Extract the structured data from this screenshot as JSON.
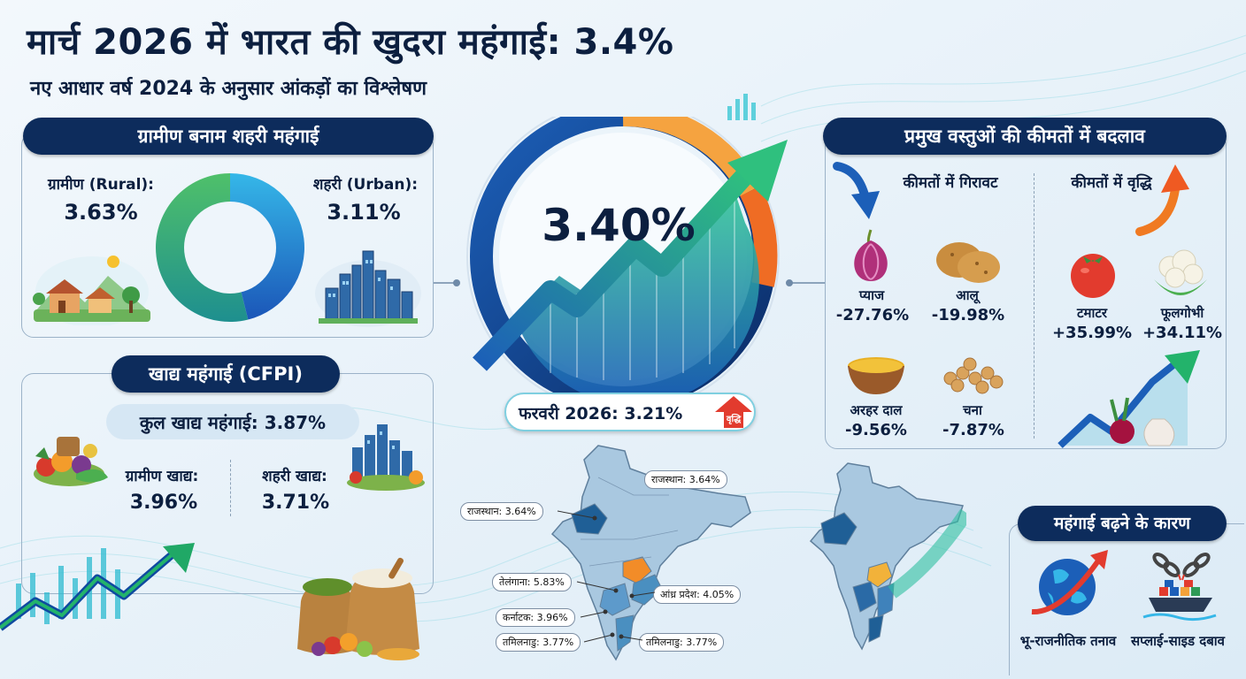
{
  "header": {
    "title": "मार्च 2026 में भारत की खुदरा महंगाई: 3.4%",
    "subtitle": "नए आधार वर्ष 2024 के अनुसार आंकड़ों का विश्लेषण"
  },
  "rural_urban": {
    "heading": "ग्रामीण बनाम शहरी महंगाई",
    "rural_label": "ग्रामीण (Rural):",
    "rural_value": "3.63%",
    "rural_share": 0.539,
    "urban_label": "शहरी (Urban):",
    "urban_value": "3.11%",
    "urban_share": 0.461
  },
  "food": {
    "heading": "खाद्य महंगाई (CFPI)",
    "total": "कुल खाद्य महंगाई: 3.87%",
    "rural_label": "ग्रामीण खाद्य:",
    "rural_value": "3.96%",
    "urban_label": "शहरी खाद्य:",
    "urban_value": "3.71%"
  },
  "gauge": {
    "value": "3.40%",
    "previous": "फरवरी 2026: 3.21%",
    "badge": "वृद्धि"
  },
  "prices": {
    "heading": "प्रमुख वस्तुओं की कीमतों में बदलाव",
    "fall_heading": "कीमतों में गिरावट",
    "rise_heading": "कीमतों में वृद्धि",
    "falls": [
      {
        "name": "प्याज",
        "change": "-27.76%"
      },
      {
        "name": "आलू",
        "change": "-19.98%"
      },
      {
        "name": "अरहर दाल",
        "change": "-9.56%"
      },
      {
        "name": "चना",
        "change": "-7.87%"
      }
    ],
    "rises": [
      {
        "name": "टमाटर",
        "change": "+35.99%"
      },
      {
        "name": "फूलगोभी",
        "change": "+34.11%"
      }
    ]
  },
  "states": {
    "tags": [
      "राजस्थान: 3.64%",
      "राजस्थान: 3.64%",
      "तेलंगाना: 5.83%",
      "आंध्र प्रदेश: 4.05%",
      "कर्नाटक: 3.96%",
      "तमिलनाडु: 3.77%",
      "तमिलनाडु: 3.77%"
    ]
  },
  "causes": {
    "heading": "महंगाई बढ़ने के कारण",
    "items": [
      "भू-राजनीतिक तनाव",
      "सप्लाई-साइड दबाव"
    ]
  },
  "colors": {
    "navy": "#0d2c5c",
    "green": "#3fb16a",
    "blue": "#1f6fc2",
    "orange": "#f28c28"
  }
}
